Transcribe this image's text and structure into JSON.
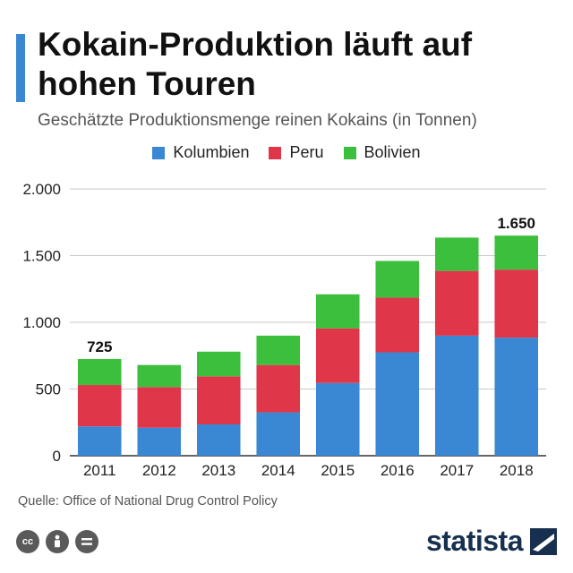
{
  "header": {
    "title": "Kokain-Produktion läuft auf hohen Touren",
    "subtitle": "Geschätzte Produktionsmenge reinen Kokains (in Tonnen)"
  },
  "legend": [
    {
      "label": "Kolumbien",
      "color": "#3a87d3"
    },
    {
      "label": "Peru",
      "color": "#e0364a"
    },
    {
      "label": "Bolivien",
      "color": "#3cbf3c"
    }
  ],
  "chart_data": {
    "type": "bar",
    "stacked": true,
    "title": "Kokain-Produktion läuft auf hohen Touren",
    "subtitle": "Geschätzte Produktionsmenge reinen Kokains (in Tonnen)",
    "categories": [
      "2011",
      "2012",
      "2013",
      "2014",
      "2015",
      "2016",
      "2017",
      "2018"
    ],
    "series": [
      {
        "name": "Kolumbien",
        "color": "#3a87d3",
        "values": [
          220,
          210,
          235,
          325,
          545,
          775,
          900,
          885
        ]
      },
      {
        "name": "Peru",
        "color": "#e0364a",
        "values": [
          310,
          305,
          360,
          355,
          410,
          410,
          485,
          510
        ]
      },
      {
        "name": "Bolivien",
        "color": "#3cbf3c",
        "values": [
          195,
          165,
          185,
          220,
          255,
          275,
          250,
          255
        ]
      }
    ],
    "totals_labels": [
      {
        "category": "2011",
        "text": "725"
      },
      {
        "category": "2018",
        "text": "1.650"
      }
    ],
    "ylim": [
      0,
      2000
    ],
    "yticks": [
      0,
      500,
      1000,
      1500,
      2000
    ],
    "ytick_labels": [
      "0",
      "500",
      "1.000",
      "1.500",
      "2.000"
    ],
    "grid": true,
    "legend_position": "top-center"
  },
  "footer": {
    "source": "Quelle: Office of National Drug Control Policy",
    "brand": "statista",
    "license_icons": [
      "cc-icon",
      "person-icon",
      "equals-icon"
    ]
  }
}
